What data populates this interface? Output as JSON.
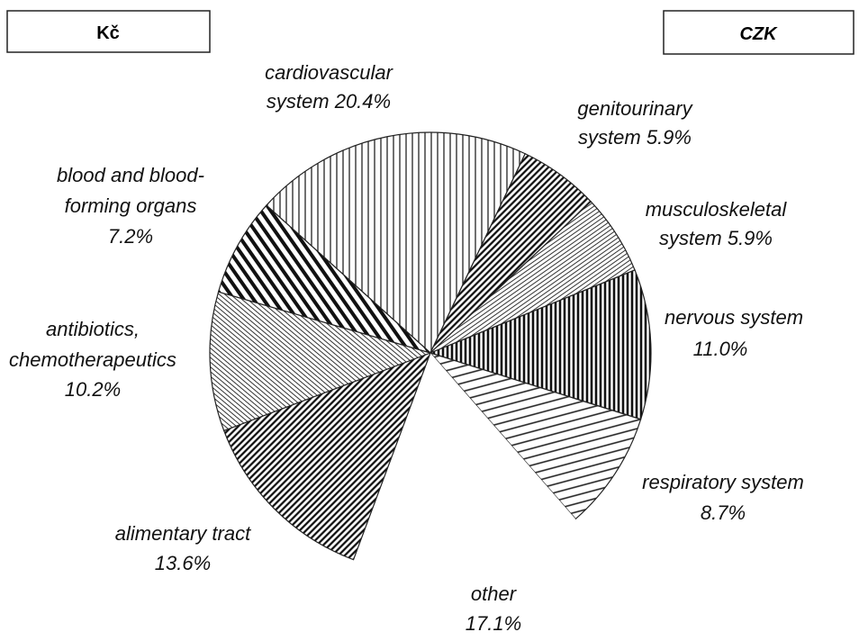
{
  "header": {
    "left": "Kč",
    "right": "CZK"
  },
  "chart_data": {
    "type": "pie",
    "start_angle": -48,
    "categories": [
      [
        "cardiovascular",
        "system"
      ],
      [
        "genitourinary",
        "system"
      ],
      [
        "musculoskeletal",
        "system"
      ],
      [
        "nervous system"
      ],
      [
        "respiratory system"
      ],
      [
        "other"
      ],
      [
        "alimentary tract"
      ],
      [
        "antibiotics,",
        "chemotherapeutics"
      ],
      [
        "blood and blood-",
        "forming organs"
      ]
    ],
    "values": [
      20.4,
      5.9,
      5.9,
      11.0,
      8.7,
      17.1,
      13.6,
      10.2,
      7.2
    ],
    "value_labels": [
      "20.4%",
      "5.9%",
      "5.9%",
      "11.0%",
      "8.7%",
      "17.1%",
      "13.6%",
      "10.2%",
      "7.2%"
    ],
    "hatches": [
      "vertical",
      "diag-dense",
      "diag-light",
      "vertical-dense",
      "shallow",
      "none",
      "diag-dense",
      "back-light",
      "diag-thick"
    ]
  }
}
